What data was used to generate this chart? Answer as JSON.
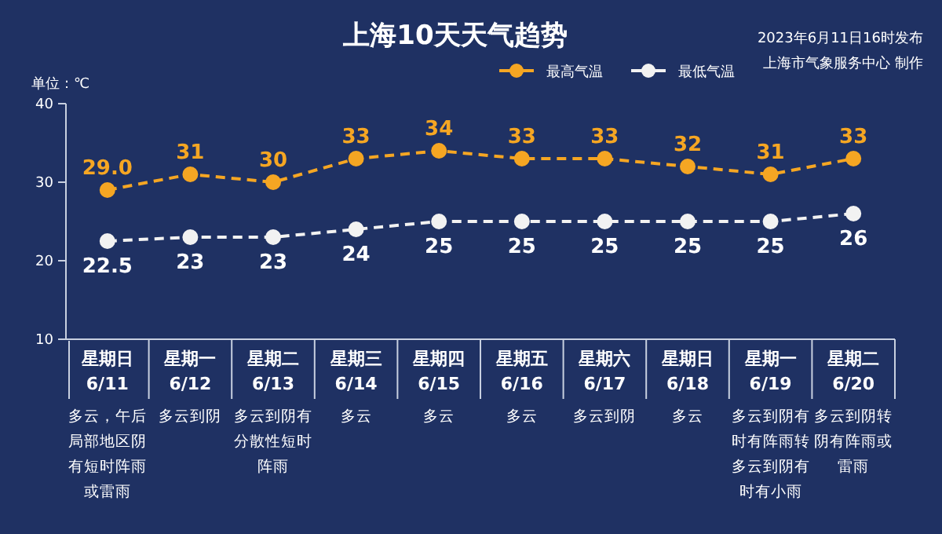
{
  "chart_data": {
    "type": "line",
    "title": "上海10天天气趋势",
    "ylabel": "单位：℃",
    "categories": [
      "星期日\n6/11",
      "星期一\n6/12",
      "星期二\n6/13",
      "星期三\n6/14",
      "星期四\n6/15",
      "星期五\n6/16",
      "星期六\n6/17",
      "星期日\n6/18",
      "星期一\n6/19",
      "星期二\n6/20"
    ],
    "series": [
      {
        "name": "最高气温",
        "color": "#f5a623",
        "values": [
          29.0,
          31,
          30,
          33,
          34,
          33,
          33,
          32,
          31,
          33
        ],
        "value_labels": [
          "29.0",
          "31",
          "30",
          "33",
          "34",
          "33",
          "33",
          "32",
          "31",
          "33"
        ]
      },
      {
        "name": "最低气温",
        "color": "#f2f2f2",
        "values": [
          22.5,
          23,
          23,
          24,
          25,
          25,
          25,
          25,
          25,
          26
        ],
        "value_labels": [
          "22.5",
          "23",
          "23",
          "24",
          "25",
          "25",
          "25",
          "25",
          "25",
          "26"
        ]
      }
    ],
    "ylim": [
      10,
      40
    ],
    "yticks": [
      10,
      20,
      30,
      40
    ],
    "legend": "top right",
    "marker": "circle",
    "line_style": "dashed",
    "annotations": [
      "2023年6月11日16时发布",
      "上海市气象服务中心 制作",
      "多云，午后局部地区阴有短时阵雨或雷雨",
      "多云到阴",
      "多云到阴有分散性短时阵雨",
      "多云",
      "多云",
      "多云",
      "多云到阴",
      "多云",
      "多云到阴有时有阵雨转多云到阴有时有小雨",
      "多云到阴转阴有阵雨或雷雨"
    ]
  }
}
